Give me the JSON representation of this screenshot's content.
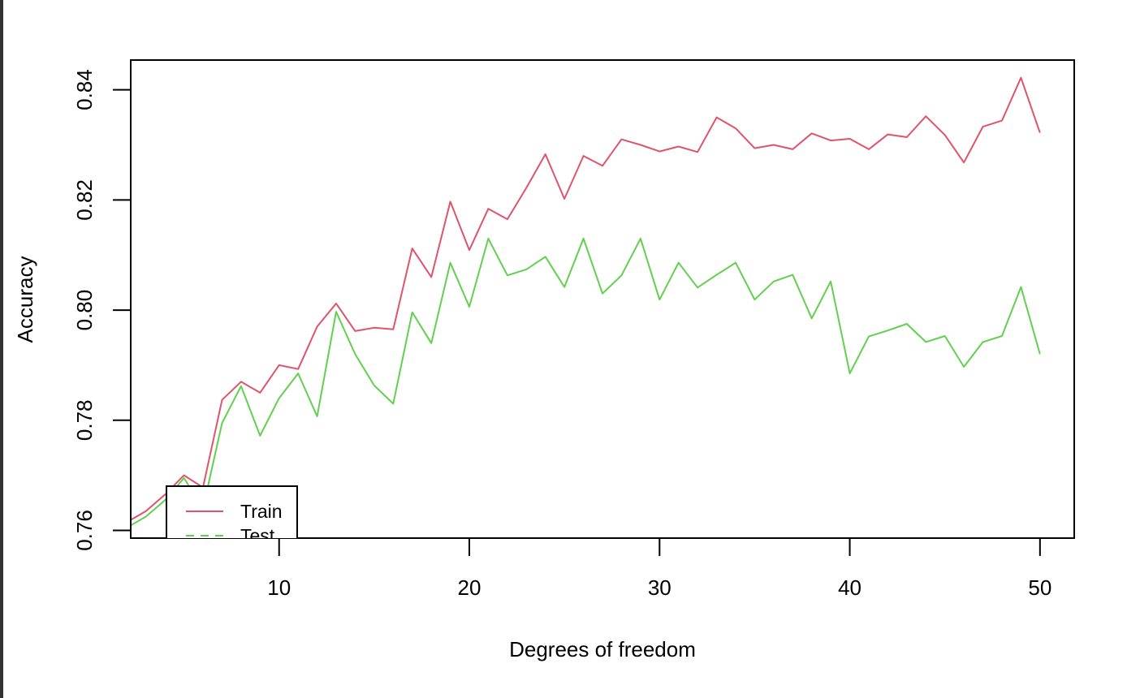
{
  "chart_data": {
    "type": "line",
    "title": "",
    "xlabel": "Degrees of freedom",
    "ylabel": "Accuracy",
    "xlim": [
      2.2,
      51.8
    ],
    "ylim": [
      0.7586,
      0.8454
    ],
    "xticks": [
      10,
      20,
      30,
      40,
      50
    ],
    "yticks": [
      0.76,
      0.78,
      0.8,
      0.82,
      0.84
    ],
    "xtick_labels": [
      "10",
      "20",
      "30",
      "40",
      "50"
    ],
    "ytick_labels": [
      "0.76",
      "0.78",
      "0.80",
      "0.82",
      "0.84"
    ],
    "grid": false,
    "legend_position": "bottom-left",
    "x": [
      2,
      3,
      4,
      5,
      6,
      7,
      8,
      9,
      10,
      11,
      12,
      13,
      14,
      15,
      16,
      17,
      18,
      19,
      20,
      21,
      22,
      23,
      24,
      25,
      26,
      27,
      28,
      29,
      30,
      31,
      32,
      33,
      34,
      35,
      36,
      37,
      38,
      39,
      40,
      41,
      42,
      43,
      44,
      45,
      46,
      47,
      48,
      49,
      50
    ],
    "series": [
      {
        "name": "Train",
        "color": "#DF536B",
        "dash": "solid",
        "values": [
          0.7615,
          0.7635,
          0.7665,
          0.77,
          0.7678,
          0.7837,
          0.787,
          0.785,
          0.79,
          0.7893,
          0.797,
          0.8012,
          0.7962,
          0.7968,
          0.7965,
          0.8112,
          0.806,
          0.8197,
          0.8109,
          0.8184,
          0.8165,
          0.8222,
          0.8283,
          0.8202,
          0.828,
          0.8262,
          0.831,
          0.83,
          0.8288,
          0.8297,
          0.8287,
          0.835,
          0.833,
          0.8294,
          0.83,
          0.8292,
          0.8321,
          0.8308,
          0.8311,
          0.8292,
          0.8319,
          0.8314,
          0.8352,
          0.8318,
          0.8268,
          0.8333,
          0.8344,
          0.8422,
          0.8322
        ]
      },
      {
        "name": "Test",
        "color": "#61D04F",
        "dash": "dashed",
        "values": [
          0.7605,
          0.7625,
          0.7655,
          0.7695,
          0.764,
          0.7795,
          0.7862,
          0.7772,
          0.784,
          0.7885,
          0.7807,
          0.7997,
          0.792,
          0.7863,
          0.783,
          0.7996,
          0.794,
          0.8086,
          0.8006,
          0.813,
          0.8063,
          0.8074,
          0.8097,
          0.8042,
          0.813,
          0.803,
          0.8063,
          0.813,
          0.8019,
          0.8086,
          0.8041,
          0.8064,
          0.8086,
          0.8019,
          0.8052,
          0.8064,
          0.7985,
          0.8052,
          0.7885,
          0.7952,
          0.7963,
          0.7975,
          0.7942,
          0.7953,
          0.7897,
          0.7942,
          0.7953,
          0.8042,
          0.792
        ]
      }
    ]
  }
}
